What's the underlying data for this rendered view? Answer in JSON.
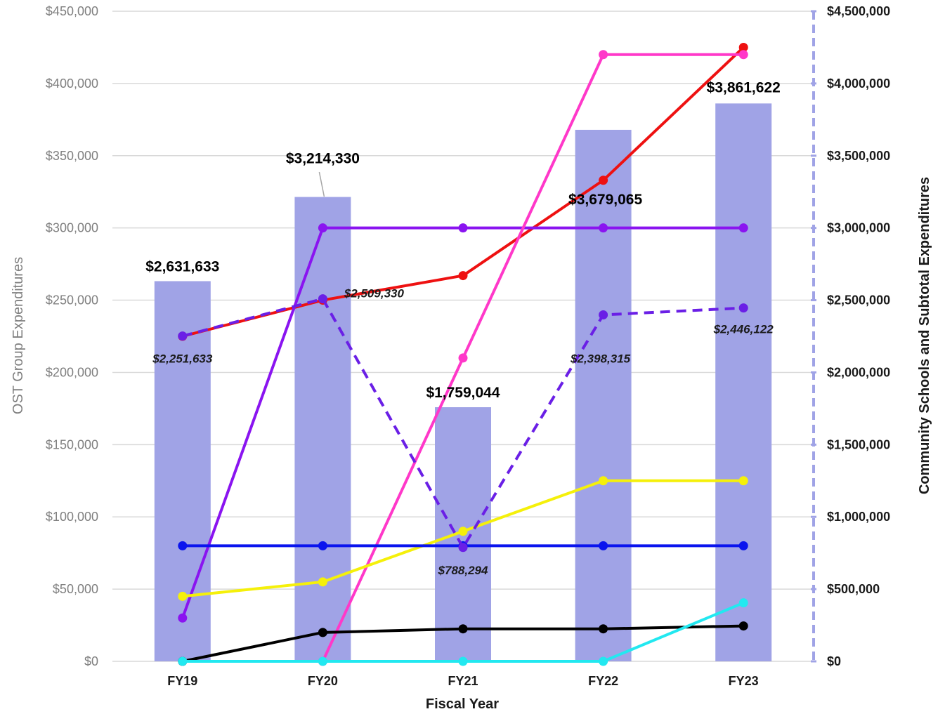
{
  "chart_data": {
    "type": "bar",
    "categories": [
      "FY19",
      "FY20",
      "FY21",
      "FY22",
      "FY23"
    ],
    "xlabel": "Fiscal Year",
    "ylabel_left": "OST Group Expenditures",
    "ylabel_right": "Community Schools and Subtotal Expenditures",
    "ylim_left": [
      0,
      450000
    ],
    "ylim_right": [
      0,
      4500000
    ],
    "yticks_left": [
      "$0",
      "$50,000",
      "$100,000",
      "$150,000",
      "$200,000",
      "$250,000",
      "$300,000",
      "$350,000",
      "$400,000",
      "$450,000"
    ],
    "yticks_right": [
      "$0",
      "$500,000",
      "$1,000,000",
      "$1,500,000",
      "$2,000,000",
      "$2,500,000",
      "$3,000,000",
      "$3,500,000",
      "$4,000,000",
      "$4,500,000"
    ],
    "grid": true,
    "bars": {
      "axis": "right",
      "color": "#a0a3e6",
      "values": [
        2631633,
        3214330,
        1759044,
        3679065,
        3861622
      ],
      "labels": [
        "$2,631,633",
        "$3,214,330",
        "$1,759,044",
        "$3,679,065",
        "$3,861,622"
      ]
    },
    "subtotal_line": {
      "axis": "right",
      "color": "#6a1fe6",
      "style": "dashed",
      "values": [
        2251633,
        2509330,
        788294,
        2398315,
        2446122
      ],
      "labels": [
        "$2,251,633",
        "$2,509,330",
        "$788,294",
        "$2,398,315",
        "$2,446,122"
      ]
    },
    "series": [
      {
        "axis": "left",
        "color": "#ee1111",
        "values": [
          225000,
          250000,
          267000,
          333000,
          425000
        ]
      },
      {
        "axis": "left",
        "color": "#8a14f0",
        "values": [
          30000,
          300000,
          300000,
          300000,
          300000
        ]
      },
      {
        "axis": "left",
        "color": "#ff38c9",
        "values": [
          0,
          0,
          210000,
          420000,
          420000
        ]
      },
      {
        "axis": "left",
        "color": "#f5f00a",
        "values": [
          45000,
          55000,
          90000,
          125000,
          125000
        ]
      },
      {
        "axis": "left",
        "color": "#0a14ee",
        "values": [
          80000,
          80000,
          80000,
          80000,
          80000
        ]
      },
      {
        "axis": "left",
        "color": "#000000",
        "values": [
          0,
          20000,
          22500,
          22500,
          24500
        ]
      },
      {
        "axis": "left",
        "color": "#22e8f0",
        "values": [
          0,
          0,
          0,
          0,
          40500
        ]
      }
    ]
  }
}
